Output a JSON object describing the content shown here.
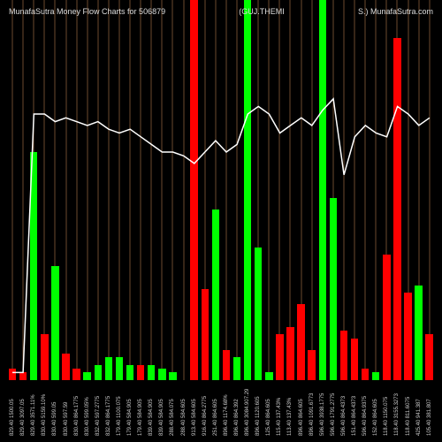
{
  "header": {
    "left": "MunafaSutra   Money Flow   Charts for 506879",
    "center": "(GUJ.THEMI",
    "right": "S.)  MunafaSutra.com"
  },
  "chart": {
    "type": "bar",
    "background_color": "#000000",
    "grid_color": "#6b4a2e",
    "line_color": "#ffffff",
    "line_width": 1.5,
    "green": "#00ff00",
    "red": "#ff0000",
    "ymax": 100,
    "bars": [
      {
        "h": 3,
        "c": "red"
      },
      {
        "h": 2,
        "c": "red"
      },
      {
        "h": 60,
        "c": "green"
      },
      {
        "h": 12,
        "c": "red"
      },
      {
        "h": 30,
        "c": "green"
      },
      {
        "h": 7,
        "c": "red"
      },
      {
        "h": 3,
        "c": "red"
      },
      {
        "h": 2,
        "c": "green"
      },
      {
        "h": 4,
        "c": "green"
      },
      {
        "h": 6,
        "c": "green"
      },
      {
        "h": 6,
        "c": "green"
      },
      {
        "h": 4,
        "c": "green"
      },
      {
        "h": 4,
        "c": "red"
      },
      {
        "h": 4,
        "c": "green"
      },
      {
        "h": 3,
        "c": "green"
      },
      {
        "h": 2,
        "c": "green"
      },
      {
        "h": 0,
        "c": "green"
      },
      {
        "h": 100,
        "c": "red"
      },
      {
        "h": 24,
        "c": "red"
      },
      {
        "h": 45,
        "c": "green"
      },
      {
        "h": 8,
        "c": "red"
      },
      {
        "h": 6,
        "c": "green"
      },
      {
        "h": 100,
        "c": "green"
      },
      {
        "h": 35,
        "c": "green"
      },
      {
        "h": 2,
        "c": "green"
      },
      {
        "h": 12,
        "c": "red"
      },
      {
        "h": 14,
        "c": "red"
      },
      {
        "h": 20,
        "c": "red"
      },
      {
        "h": 8,
        "c": "red"
      },
      {
        "h": 100,
        "c": "green"
      },
      {
        "h": 48,
        "c": "green"
      },
      {
        "h": 13,
        "c": "red"
      },
      {
        "h": 11,
        "c": "red"
      },
      {
        "h": 3,
        "c": "red"
      },
      {
        "h": 2,
        "c": "green"
      },
      {
        "h": 33,
        "c": "red"
      },
      {
        "h": 90,
        "c": "red"
      },
      {
        "h": 23,
        "c": "red"
      },
      {
        "h": 25,
        "c": "green"
      },
      {
        "h": 12,
        "c": "red"
      }
    ],
    "line_points": [
      98,
      98,
      30,
      30,
      32,
      31,
      32,
      33,
      32,
      34,
      35,
      34,
      36,
      38,
      40,
      40,
      41,
      43,
      40,
      37,
      40,
      38,
      30,
      28,
      30,
      35,
      33,
      31,
      33,
      29,
      26,
      46,
      36,
      33,
      35,
      36,
      28,
      30,
      33,
      31
    ],
    "x_labels": [
      "829.40 1500.05",
      "829.40 3097.05",
      "829.40 3571.11%",
      "830.40 5159.10%",
      "830.40 599.05",
      "830.40 597.59",
      "830.40 864.1775",
      "830.40 599.05%",
      "832.40 597.2775",
      "832.40 864.1775",
      "179.40 1100.075",
      "179.40 584.905",
      "179.40 584.905",
      "839.40 584.905",
      "839.40 584.905",
      "288.40 584.075",
      "288.40 584.605",
      "913.40 584.605",
      "916.40 864.2775",
      "251.40 864.605",
      "896.40 1174.68%",
      "896.40 864.392",
      "896.40 3084.907.29",
      "896.40 1120.605",
      "125.40 864.605",
      "115.40 137.43%",
      "113.40 137.43%",
      "896.40 864.605",
      "896.40 1091.6773",
      "596.40 3938.1775",
      "596.40 1791.2775",
      "596.40 864.4373",
      "151.40 864.4373",
      "596.40 864.9375",
      "152.40 864.605",
      "118.40 1150.075",
      "118.40 3155.3273",
      "118.40 811.6075",
      "425.40 941.387",
      "105.40 381.807"
    ]
  }
}
